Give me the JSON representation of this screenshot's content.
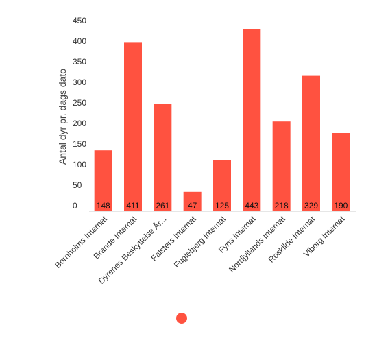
{
  "chart_data": {
    "type": "bar",
    "categories": [
      "Bornholms Internat",
      "Brande Internat",
      "Dyrenes Beskyttelse År...",
      "Falsters Internat",
      "Fuglebjerg Internat",
      "Fyns Internat",
      "Nordjyllands Internat",
      "Roskilde Internat",
      "Viborg Internat"
    ],
    "series": [
      {
        "values": [
          148,
          411,
          261,
          47,
          125,
          443,
          218,
          329,
          190
        ]
      }
    ],
    "data_labels": [
      "148",
      "411",
      "261",
      "47",
      "125",
      "443",
      "218",
      "329",
      "190"
    ],
    "ylabel": "Antal dyr pr. dags dato",
    "xlabel": "",
    "ylim": [
      0,
      450
    ],
    "yticks": [
      0,
      50,
      100,
      150,
      200,
      250,
      300,
      350,
      400,
      450
    ],
    "grid": false,
    "legend": "bottom",
    "bar_color": "#ff5240"
  }
}
